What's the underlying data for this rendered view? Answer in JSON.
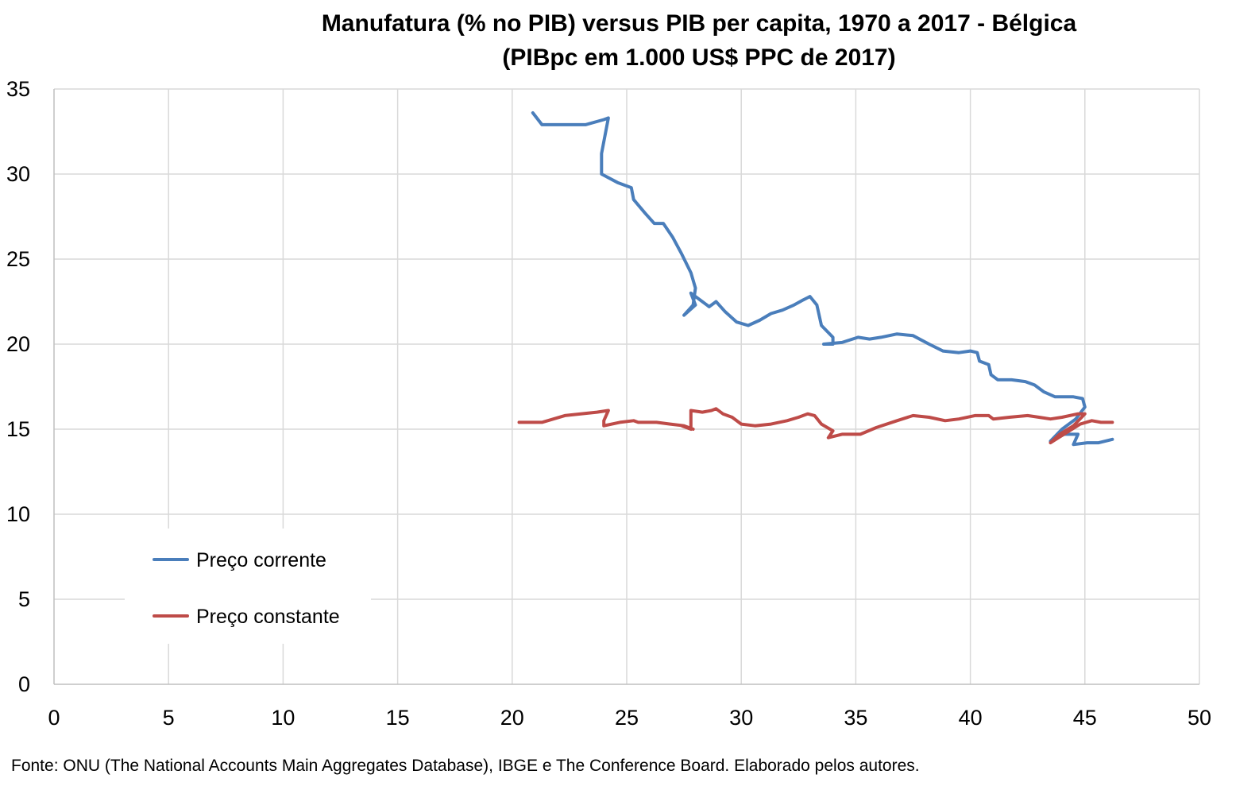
{
  "chart_data": {
    "type": "line",
    "title": "Manufatura (% no PIB) versus PIB per capita, 1970 a 2017 - Bélgica",
    "subtitle": "(PIBpc em 1.000 US$ PPC de 2017)",
    "xlabel": "",
    "ylabel": "",
    "xlim": [
      0,
      50
    ],
    "ylim": [
      0,
      35
    ],
    "x_ticks": [
      "0",
      "5",
      "10",
      "15",
      "20",
      "25",
      "30",
      "35",
      "40",
      "45",
      "50"
    ],
    "y_ticks": [
      "0",
      "5",
      "10",
      "15",
      "20",
      "25",
      "30",
      "35"
    ],
    "grid": true,
    "legend_position": "bottom-left",
    "source_note": "Fonte: ONU (The National Accounts Main Aggregates Database), IBGE e The Conference Board. Elaborado pelos autores.",
    "series": [
      {
        "name": "Preço corrente",
        "color": "#4a7ebb",
        "points": [
          [
            20.9,
            33.6
          ],
          [
            21.3,
            32.9
          ],
          [
            22.2,
            32.9
          ],
          [
            23.2,
            32.9
          ],
          [
            24.0,
            33.2
          ],
          [
            24.2,
            33.3
          ],
          [
            23.9,
            31.2
          ],
          [
            23.9,
            30.0
          ],
          [
            24.6,
            29.5
          ],
          [
            25.2,
            29.2
          ],
          [
            25.3,
            28.5
          ],
          [
            25.8,
            27.7
          ],
          [
            26.2,
            27.1
          ],
          [
            26.6,
            27.1
          ],
          [
            27.0,
            26.3
          ],
          [
            27.4,
            25.3
          ],
          [
            27.8,
            24.2
          ],
          [
            28.0,
            23.3
          ],
          [
            27.9,
            22.3
          ],
          [
            27.5,
            21.7
          ],
          [
            28.0,
            22.3
          ],
          [
            27.8,
            23.0
          ],
          [
            28.3,
            22.5
          ],
          [
            28.6,
            22.2
          ],
          [
            28.9,
            22.5
          ],
          [
            29.3,
            21.9
          ],
          [
            29.8,
            21.3
          ],
          [
            30.3,
            21.1
          ],
          [
            30.8,
            21.4
          ],
          [
            31.3,
            21.8
          ],
          [
            31.8,
            22.0
          ],
          [
            32.3,
            22.3
          ],
          [
            32.7,
            22.6
          ],
          [
            33.0,
            22.8
          ],
          [
            33.3,
            22.3
          ],
          [
            33.5,
            21.1
          ],
          [
            34.0,
            20.4
          ],
          [
            34.0,
            20.0
          ],
          [
            33.6,
            20.0
          ],
          [
            34.4,
            20.1
          ],
          [
            35.1,
            20.4
          ],
          [
            35.6,
            20.3
          ],
          [
            36.1,
            20.4
          ],
          [
            36.8,
            20.6
          ],
          [
            37.5,
            20.5
          ],
          [
            38.2,
            20.0
          ],
          [
            38.8,
            19.6
          ],
          [
            39.5,
            19.5
          ],
          [
            40.0,
            19.6
          ],
          [
            40.3,
            19.5
          ],
          [
            40.4,
            19.0
          ],
          [
            40.8,
            18.8
          ],
          [
            40.9,
            18.2
          ],
          [
            41.2,
            17.9
          ],
          [
            41.8,
            17.9
          ],
          [
            42.4,
            17.8
          ],
          [
            42.8,
            17.6
          ],
          [
            43.2,
            17.2
          ],
          [
            43.7,
            16.9
          ],
          [
            44.5,
            16.9
          ],
          [
            44.9,
            16.8
          ],
          [
            45.0,
            16.3
          ],
          [
            44.6,
            15.6
          ],
          [
            44.0,
            15.0
          ],
          [
            43.5,
            14.3
          ],
          [
            44.1,
            14.7
          ],
          [
            44.7,
            14.7
          ],
          [
            44.5,
            14.1
          ],
          [
            45.1,
            14.2
          ],
          [
            45.6,
            14.2
          ],
          [
            46.2,
            14.4
          ]
        ]
      },
      {
        "name": "Preço constante",
        "color": "#be4b48",
        "points": [
          [
            20.3,
            15.4
          ],
          [
            20.8,
            15.4
          ],
          [
            21.3,
            15.4
          ],
          [
            21.8,
            15.6
          ],
          [
            22.3,
            15.8
          ],
          [
            23.0,
            15.9
          ],
          [
            23.7,
            16.0
          ],
          [
            24.2,
            16.1
          ],
          [
            24.0,
            15.5
          ],
          [
            24.0,
            15.2
          ],
          [
            24.7,
            15.4
          ],
          [
            25.3,
            15.5
          ],
          [
            25.5,
            15.4
          ],
          [
            26.3,
            15.4
          ],
          [
            26.9,
            15.3
          ],
          [
            27.5,
            15.2
          ],
          [
            27.9,
            15.0
          ],
          [
            27.4,
            15.2
          ],
          [
            27.8,
            15.0
          ],
          [
            27.8,
            16.1
          ],
          [
            28.3,
            16.0
          ],
          [
            28.7,
            16.1
          ],
          [
            28.9,
            16.2
          ],
          [
            29.2,
            15.9
          ],
          [
            29.6,
            15.7
          ],
          [
            30.0,
            15.3
          ],
          [
            30.6,
            15.2
          ],
          [
            31.3,
            15.3
          ],
          [
            32.0,
            15.5
          ],
          [
            32.5,
            15.7
          ],
          [
            32.9,
            15.9
          ],
          [
            33.2,
            15.8
          ],
          [
            33.5,
            15.3
          ],
          [
            34.0,
            14.9
          ],
          [
            33.8,
            14.5
          ],
          [
            34.4,
            14.7
          ],
          [
            35.2,
            14.7
          ],
          [
            35.9,
            15.1
          ],
          [
            36.8,
            15.5
          ],
          [
            37.5,
            15.8
          ],
          [
            38.2,
            15.7
          ],
          [
            38.9,
            15.5
          ],
          [
            39.5,
            15.6
          ],
          [
            40.2,
            15.8
          ],
          [
            40.8,
            15.8
          ],
          [
            41.0,
            15.6
          ],
          [
            41.7,
            15.7
          ],
          [
            42.5,
            15.8
          ],
          [
            43.0,
            15.7
          ],
          [
            43.5,
            15.6
          ],
          [
            44.0,
            15.7
          ],
          [
            44.7,
            15.9
          ],
          [
            45.0,
            15.9
          ],
          [
            44.5,
            15.2
          ],
          [
            43.9,
            14.7
          ],
          [
            43.5,
            14.2
          ],
          [
            44.2,
            14.8
          ],
          [
            44.8,
            15.3
          ],
          [
            45.3,
            15.5
          ],
          [
            45.7,
            15.4
          ],
          [
            46.2,
            15.4
          ]
        ]
      }
    ]
  }
}
